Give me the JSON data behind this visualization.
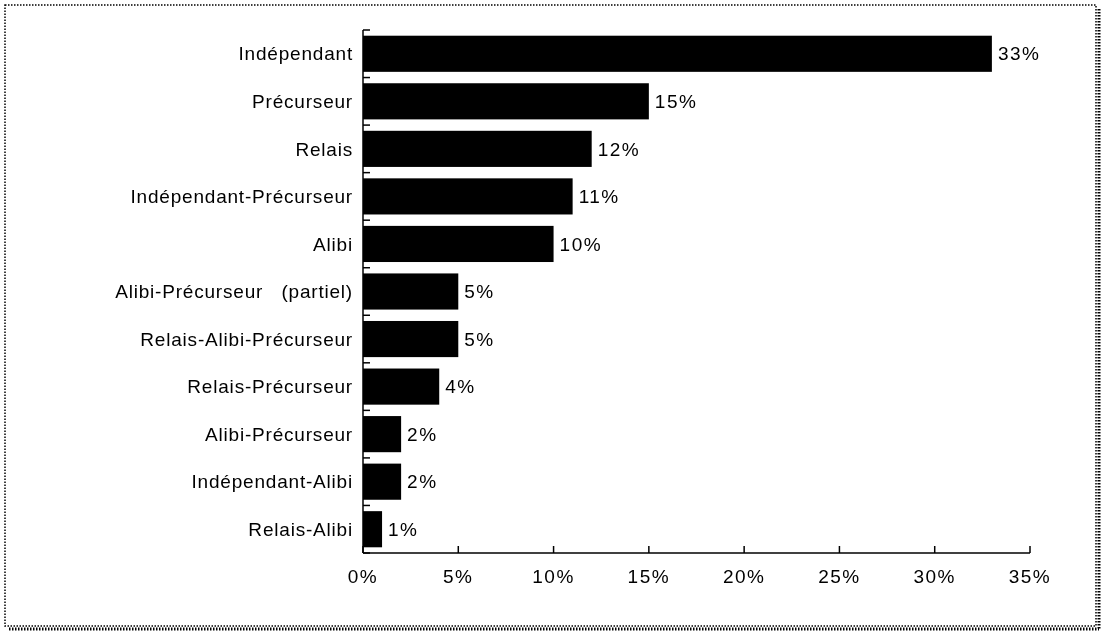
{
  "chart_data": {
    "type": "bar",
    "orientation": "horizontal",
    "categories": [
      "Indépendant",
      "Précurseur",
      "Relais",
      "Indépendant-Précurseur",
      "Alibi",
      "Alibi-Précurseur   (partiel)",
      "Relais-Alibi-Précurseur",
      "Relais-Précurseur",
      "Alibi-Précurseur",
      "Indépendant-Alibi",
      "Relais-Alibi"
    ],
    "values": [
      33,
      15,
      12,
      11,
      10,
      5,
      5,
      4,
      2,
      2,
      1
    ],
    "value_labels": [
      "33%",
      "15%",
      "12%",
      "11%",
      "10%",
      "5%",
      "5%",
      "4%",
      "2%",
      "2%",
      "1%"
    ],
    "color": "#000000",
    "xlim": [
      0,
      35
    ],
    "xticks": [
      {
        "value": 0,
        "label": "0%"
      },
      {
        "value": 5,
        "label": "5%"
      },
      {
        "value": 10,
        "label": "10%"
      },
      {
        "value": 15,
        "label": "15%"
      },
      {
        "value": 20,
        "label": "20%"
      },
      {
        "value": 25,
        "label": "25%"
      },
      {
        "value": 30,
        "label": "30%"
      },
      {
        "value": 35,
        "label": "35%"
      }
    ],
    "grid": false
  }
}
